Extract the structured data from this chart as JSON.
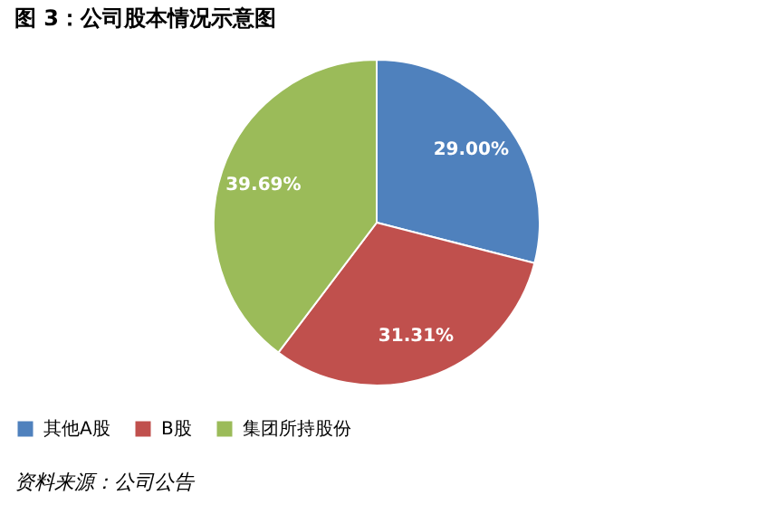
{
  "chart_data": {
    "type": "pie",
    "title": "图 3：公司股本情况示意图",
    "categories": [
      "其他A股",
      "B股",
      "集团所持股份"
    ],
    "values": [
      29.0,
      31.31,
      39.69
    ],
    "colors": [
      "#4f81bd",
      "#c0504d",
      "#9bbb59"
    ],
    "value_labels": [
      "29.00%",
      "31.31%",
      "39.69%"
    ],
    "legend": "bottom",
    "annotations": [
      "资料来源：公司公告"
    ]
  }
}
